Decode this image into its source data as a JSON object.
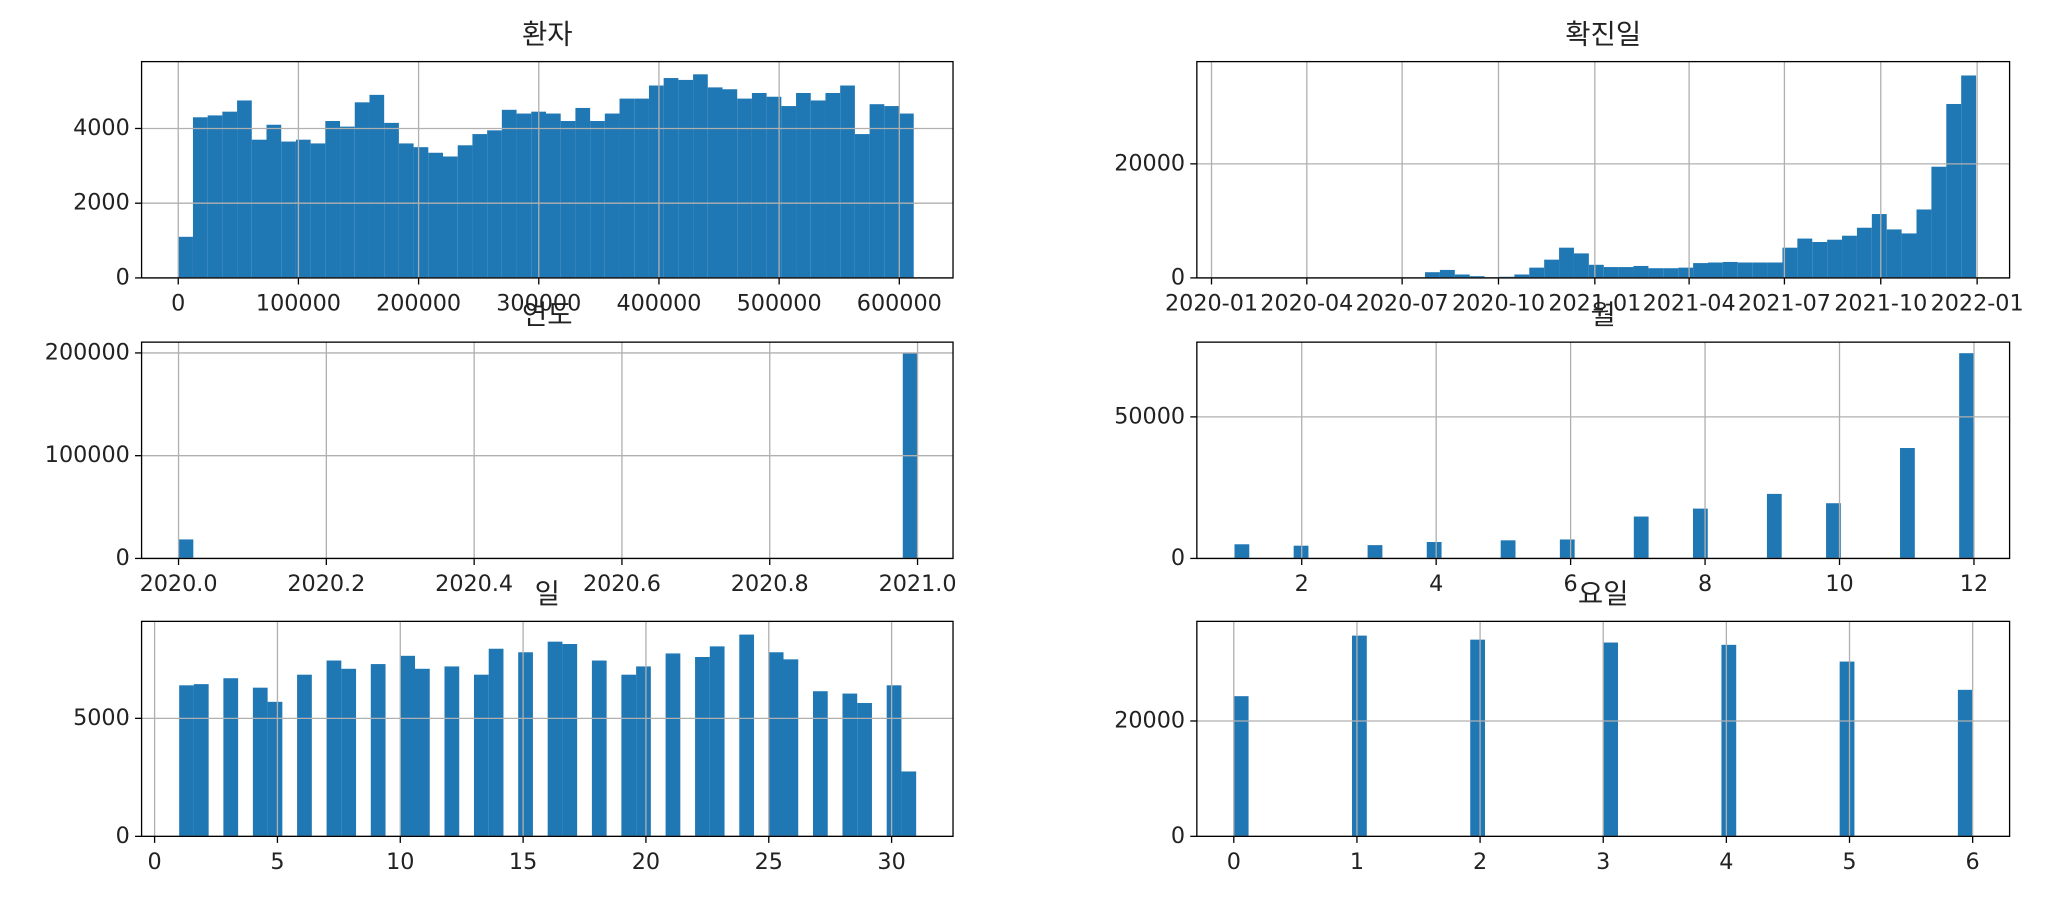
{
  "chart_data": [
    {
      "type": "histogram",
      "title": "환자",
      "color": "#1f77b4",
      "grid": true,
      "bins": [
        0,
        12240,
        24480,
        36720,
        48960,
        61200,
        73440,
        85680,
        97920,
        110160,
        122400,
        134640,
        146880,
        159120,
        171360,
        183600,
        195840,
        208080,
        220320,
        232560,
        244800,
        257040,
        269280,
        281520,
        293760,
        306000,
        318240,
        330480,
        342720,
        354960,
        367200,
        379440,
        391680,
        403920,
        416160,
        428400,
        440640,
        452880,
        465120,
        477360,
        489600,
        501840,
        514080,
        526320,
        538560,
        550800,
        563040,
        575280,
        587520,
        599760,
        612000
      ],
      "values": [
        1100,
        4300,
        4350,
        4450,
        4750,
        3700,
        4100,
        3650,
        3700,
        3600,
        4200,
        4050,
        4700,
        4900,
        4150,
        3600,
        3500,
        3350,
        3250,
        3550,
        3850,
        3950,
        4500,
        4400,
        4450,
        4400,
        4200,
        4550,
        4200,
        4400,
        4800,
        4800,
        5150,
        5350,
        5300,
        5450,
        5100,
        5050,
        4800,
        4950,
        4850,
        4600,
        4950,
        4750,
        4950,
        5150,
        3850,
        4650,
        4600,
        4400
      ],
      "xlim": [
        -30500,
        644700
      ],
      "ylim": [
        0,
        5790
      ],
      "xticks": [
        0,
        100000,
        200000,
        300000,
        400000,
        500000,
        600000
      ],
      "yticks": [
        0,
        2000,
        4000
      ]
    },
    {
      "type": "histogram",
      "title": "확진일",
      "color": "#1f77b4",
      "grid": true,
      "bins": [
        18281,
        18295.22,
        18309.44,
        18323.66,
        18337.88,
        18352.1,
        18366.32,
        18380.54,
        18394.76,
        18408.98,
        18423.2,
        18437.42,
        18451.64,
        18465.86,
        18480.08,
        18494.3,
        18508.52,
        18522.74,
        18536.96,
        18551.18,
        18565.4,
        18579.62,
        18593.84,
        18608.06,
        18622.28,
        18636.5,
        18650.72,
        18664.94,
        18679.16,
        18693.38,
        18707.6,
        18721.82,
        18736.04,
        18750.26,
        18764.48,
        18778.7,
        18792.92,
        18807.14,
        18821.36,
        18835.58,
        18849.8,
        18864.02,
        18878.24,
        18892.46,
        18906.68,
        18920.9,
        18935.12,
        18949.34,
        18963.56,
        18977.78,
        18992
      ],
      "values": [
        0,
        0,
        0,
        0,
        0,
        0,
        0,
        0,
        0,
        0,
        0,
        0,
        0,
        1000,
        1400,
        600,
        300,
        100,
        200,
        600,
        1800,
        3200,
        5300,
        4300,
        2300,
        1900,
        1900,
        2100,
        1700,
        1700,
        1800,
        2600,
        2700,
        2800,
        2700,
        2700,
        2700,
        5300,
        6900,
        6300,
        6700,
        7400,
        8800,
        11200,
        8500,
        7800,
        12000,
        19500,
        30500,
        35500
      ],
      "xlim": [
        18248,
        19024
      ],
      "ylim": [
        0,
        37930
      ],
      "xticks": [
        {
          "value": 18262,
          "label": "2020-01"
        },
        {
          "value": 18353,
          "label": "2020-04"
        },
        {
          "value": 18444,
          "label": "2020-07"
        },
        {
          "value": 18536,
          "label": "2020-10"
        },
        {
          "value": 18628,
          "label": "2021-01"
        },
        {
          "value": 18718,
          "label": "2021-04"
        },
        {
          "value": 18809,
          "label": "2021-07"
        },
        {
          "value": 18901,
          "label": "2021-10"
        },
        {
          "value": 18993,
          "label": "2022-01"
        }
      ],
      "yticks": [
        0,
        20000
      ]
    },
    {
      "type": "histogram",
      "title": "연도",
      "color": "#1f77b4",
      "grid": true,
      "bins": [
        2020,
        2020.02,
        2020.04,
        2020.06,
        2020.08,
        2020.1,
        2020.12,
        2020.14,
        2020.16,
        2020.18,
        2020.2,
        2020.22,
        2020.24,
        2020.26,
        2020.28,
        2020.3,
        2020.32,
        2020.34,
        2020.36,
        2020.38,
        2020.4,
        2020.42,
        2020.44,
        2020.46,
        2020.48,
        2020.5,
        2020.52,
        2020.54,
        2020.56,
        2020.58,
        2020.6,
        2020.62,
        2020.64,
        2020.66,
        2020.68,
        2020.7,
        2020.72,
        2020.74,
        2020.76,
        2020.78,
        2020.8,
        2020.82,
        2020.84,
        2020.86,
        2020.88,
        2020.9,
        2020.92,
        2020.94,
        2020.96,
        2020.98,
        2021
      ],
      "values": [
        18500,
        0,
        0,
        0,
        0,
        0,
        0,
        0,
        0,
        0,
        0,
        0,
        0,
        0,
        0,
        0,
        0,
        0,
        0,
        0,
        0,
        0,
        0,
        0,
        0,
        0,
        0,
        0,
        0,
        0,
        0,
        0,
        0,
        0,
        0,
        0,
        0,
        0,
        0,
        0,
        0,
        0,
        0,
        0,
        0,
        0,
        0,
        0,
        0,
        200000
      ],
      "xlim": [
        2019.95,
        2021.048
      ],
      "ylim": [
        0,
        210500
      ],
      "xticks": [
        {
          "value": 2020,
          "label": "2020.0"
        },
        2020.2,
        2020.4,
        2020.6,
        2020.8,
        {
          "value": 2021,
          "label": "2021.0"
        }
      ],
      "yticks": [
        0,
        100000,
        200000
      ]
    },
    {
      "type": "histogram",
      "title": "월",
      "color": "#1f77b4",
      "grid": true,
      "bins": [
        1,
        1.22,
        1.44,
        1.66,
        1.88,
        2.1,
        2.32,
        2.54,
        2.76,
        2.98,
        3.2,
        3.42,
        3.64,
        3.86,
        4.08,
        4.3,
        4.52,
        4.74,
        4.96,
        5.18,
        5.4,
        5.62,
        5.84,
        6.06,
        6.28,
        6.5,
        6.72,
        6.94,
        7.16,
        7.38,
        7.6,
        7.82,
        8.04,
        8.26,
        8.48,
        8.7,
        8.92,
        9.14,
        9.36,
        9.58,
        9.8,
        10.02,
        10.24,
        10.46,
        10.68,
        10.9,
        11.12,
        11.34,
        11.56,
        11.78,
        12
      ],
      "values": [
        5000,
        0,
        0,
        0,
        4500,
        0,
        0,
        0,
        0,
        4700,
        0,
        0,
        0,
        5800,
        0,
        0,
        0,
        0,
        6400,
        0,
        0,
        0,
        6700,
        0,
        0,
        0,
        0,
        14800,
        0,
        0,
        0,
        17600,
        0,
        0,
        0,
        0,
        22800,
        0,
        0,
        0,
        19500,
        0,
        0,
        0,
        0,
        39000,
        0,
        0,
        0,
        72500
      ],
      "xlim": [
        0.44,
        12.53
      ],
      "ylim": [
        0,
        76400
      ],
      "xticks": [
        2,
        4,
        6,
        8,
        10,
        12
      ],
      "yticks": [
        0,
        50000
      ]
    },
    {
      "type": "histogram",
      "title": "일",
      "color": "#1f77b4",
      "grid": true,
      "bins": [
        1,
        1.6,
        2.2,
        2.8,
        3.4,
        4,
        4.6,
        5.2,
        5.8,
        6.4,
        7,
        7.6,
        8.2,
        8.8,
        9.4,
        10,
        10.6,
        11.2,
        11.8,
        12.4,
        13,
        13.6,
        14.2,
        14.8,
        15.4,
        16,
        16.6,
        17.2,
        17.8,
        18.4,
        19,
        19.6,
        20.2,
        20.8,
        21.4,
        22,
        22.6,
        23.2,
        23.8,
        24.4,
        25,
        25.6,
        26.2,
        26.8,
        27.4,
        28,
        28.6,
        29.2,
        29.8,
        30.4,
        31
      ],
      "values": [
        6400,
        6450,
        0,
        6700,
        0,
        6300,
        5700,
        0,
        6850,
        0,
        7450,
        7100,
        0,
        7300,
        0,
        7650,
        7100,
        0,
        7200,
        0,
        6850,
        7950,
        0,
        7800,
        0,
        8250,
        8150,
        0,
        7450,
        0,
        6850,
        7200,
        0,
        7750,
        0,
        7600,
        8050,
        0,
        8550,
        0,
        7800,
        7500,
        0,
        6150,
        0,
        6050,
        5650,
        0,
        6400,
        2750
      ],
      "xlim": [
        -0.53,
        32.5
      ],
      "ylim": [
        0,
        9110
      ],
      "xticks": [
        0,
        5,
        10,
        15,
        20,
        25,
        30
      ],
      "yticks": [
        0,
        5000
      ]
    },
    {
      "type": "histogram",
      "title": "요일",
      "color": "#1f77b4",
      "grid": true,
      "bins": [
        0,
        0.12,
        0.24,
        0.36,
        0.48,
        0.6,
        0.72,
        0.84,
        0.96,
        1.08,
        1.2,
        1.32,
        1.44,
        1.56,
        1.68,
        1.8,
        1.92,
        2.04,
        2.16,
        2.28,
        2.4,
        2.52,
        2.64,
        2.76,
        2.88,
        3,
        3.12,
        3.24,
        3.36,
        3.48,
        3.6,
        3.72,
        3.84,
        3.96,
        4.08,
        4.2,
        4.32,
        4.44,
        4.56,
        4.68,
        4.8,
        4.92,
        5.04,
        5.16,
        5.28,
        5.4,
        5.52,
        5.64,
        5.76,
        5.88,
        6
      ],
      "values": [
        24300,
        0,
        0,
        0,
        0,
        0,
        0,
        0,
        34800,
        0,
        0,
        0,
        0,
        0,
        0,
        0,
        34100,
        0,
        0,
        0,
        0,
        0,
        0,
        0,
        0,
        33600,
        0,
        0,
        0,
        0,
        0,
        0,
        0,
        33200,
        0,
        0,
        0,
        0,
        0,
        0,
        0,
        30300,
        0,
        0,
        0,
        0,
        0,
        0,
        0,
        25400
      ],
      "xlim": [
        -0.3,
        6.3
      ],
      "ylim": [
        0,
        37270
      ],
      "xticks": [
        0,
        1,
        2,
        3,
        4,
        5,
        6
      ],
      "yticks": [
        0,
        20000
      ]
    }
  ]
}
